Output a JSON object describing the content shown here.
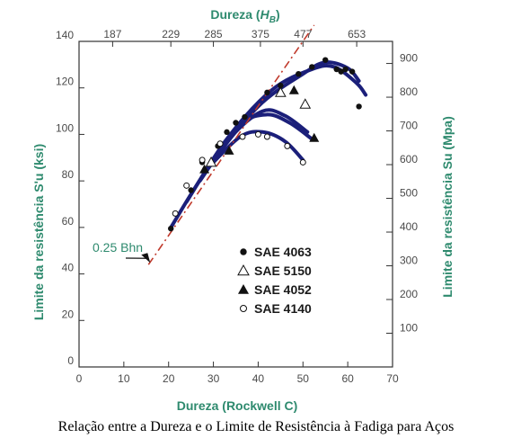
{
  "caption": "Relação entre a Dureza e o Limite de Resistência à Fadiga para Aços",
  "chart_data": {
    "type": "scatter",
    "title": "",
    "xlabel": "Dureza (Rockwell C)",
    "ylabel_left": "Limite da resistência  S'u (ksi)",
    "ylabel_right": "Limite da resistência  Su (Mpa)",
    "top_axis_label": "Dureza (HB)",
    "xlim": [
      0,
      70
    ],
    "ylim": [
      0,
      140
    ],
    "xticks": [
      "0",
      "10",
      "20",
      "30",
      "40",
      "50",
      "60",
      "70"
    ],
    "yticks": [
      "0",
      "20",
      "40",
      "60",
      "80",
      "100",
      "120",
      "140"
    ],
    "top_ticks": [
      {
        "label": "187",
        "hrc": 7.5
      },
      {
        "label": "229",
        "hrc": 20.5
      },
      {
        "label": "285",
        "hrc": 30
      },
      {
        "label": "375",
        "hrc": 40.5
      },
      {
        "label": "477",
        "hrc": 50
      },
      {
        "label": "653",
        "hrc": 62
      }
    ],
    "right_ticks": [
      {
        "label": "100",
        "ksi": 14.5
      },
      {
        "label": "200",
        "ksi": 29
      },
      {
        "label": "300",
        "ksi": 43.5
      },
      {
        "label": "400",
        "ksi": 58
      },
      {
        "label": "500",
        "ksi": 72.5
      },
      {
        "label": "600",
        "ksi": 87
      },
      {
        "label": "700",
        "ksi": 101.5
      },
      {
        "label": "800",
        "ksi": 116
      },
      {
        "label": "900",
        "ksi": 130.5
      }
    ],
    "reference_line": {
      "label": "0.25 Bhn",
      "x": [
        15.5,
        52.5
      ],
      "y": [
        44,
        147
      ]
    },
    "series": [
      {
        "name": "SAE 4063",
        "marker": "filled-circle",
        "x": [
          20.5,
          25,
          27.5,
          31,
          33,
          35,
          37,
          42,
          45,
          49,
          52,
          55,
          57.5,
          58.5,
          59.5,
          61,
          62.5
        ],
        "y": [
          59.5,
          76,
          88,
          95,
          101,
          105,
          107.5,
          118,
          121,
          126,
          129,
          132,
          128,
          127,
          128,
          127,
          112
        ]
      },
      {
        "name": "SAE 5150",
        "marker": "open-triangle",
        "x": [
          29.5,
          45,
          50.5
        ],
        "y": [
          88,
          118,
          113
        ]
      },
      {
        "name": "SAE 4052",
        "marker": "filled-triangle",
        "x": [
          28,
          33.5,
          48,
          52.5
        ],
        "y": [
          85,
          93,
          119,
          98.5
        ]
      },
      {
        "name": "SAE 4140",
        "marker": "open-circle",
        "x": [
          21.5,
          24,
          27.5,
          31.5,
          36.5,
          40,
          42,
          46.5,
          50
        ],
        "y": [
          66,
          78,
          89,
          96,
          99,
          100,
          99,
          95,
          88
        ]
      }
    ],
    "legend_position": "inside-lower-right",
    "grid": false
  }
}
